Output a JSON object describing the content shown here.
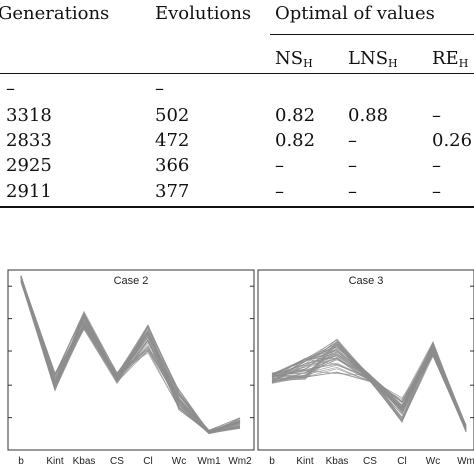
{
  "table": {
    "headers": {
      "generations": "Generations",
      "evolutions": "Evolutions",
      "optimal": "Optimal of values",
      "ns": "NS",
      "lns": "LNS",
      "re": "RE",
      "sub": "H"
    },
    "rows": [
      [
        "–",
        "–",
        "",
        "",
        ""
      ],
      [
        "3318",
        "502",
        "0.82",
        "0.88",
        "–"
      ],
      [
        "2833",
        "472",
        "0.82",
        "–",
        "0.26"
      ],
      [
        "2925",
        "366",
        "–",
        "–",
        "–"
      ],
      [
        "2911",
        "377",
        "–",
        "–",
        "–"
      ]
    ]
  },
  "chart_data": [
    {
      "type": "line",
      "title": "Case 2",
      "categories": [
        "b",
        "Kint",
        "Kbas",
        "CS",
        "Cl",
        "Wc",
        "Wm1",
        "Wm2"
      ],
      "profile_mean": [
        0.95,
        0.38,
        0.72,
        0.4,
        0.62,
        0.28,
        0.1,
        0.15
      ],
      "profile_spread": [
        0.02,
        0.05,
        0.05,
        0.03,
        0.08,
        0.06,
        0.01,
        0.03
      ],
      "line_count": 45,
      "color": "#8e8e8e"
    },
    {
      "type": "line",
      "title": "Case 3",
      "categories": [
        "b",
        "Kint",
        "Kbas",
        "CS",
        "Cl",
        "Wc",
        "Wm"
      ],
      "profile_mean": [
        0.4,
        0.45,
        0.52,
        0.4,
        0.22,
        0.56,
        0.12
      ],
      "profile_spread": [
        0.03,
        0.06,
        0.1,
        0.02,
        0.07,
        0.04,
        0.02
      ],
      "line_count": 45,
      "color": "#8e8e8e"
    }
  ]
}
